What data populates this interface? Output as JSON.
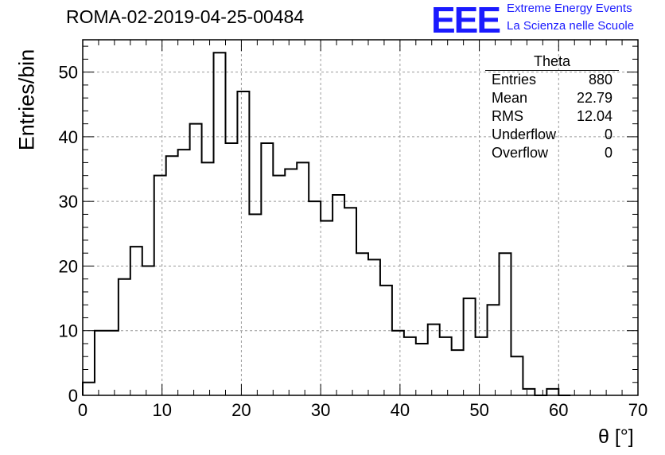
{
  "header": {
    "title": "ROMA-02-2019-04-25-00484",
    "logo_text": "EEE",
    "logo_line1": "Extreme Energy Events",
    "logo_line2": "La Scienza nelle Scuole"
  },
  "stats_box": {
    "title": "Theta",
    "rows": [
      {
        "label": "Entries",
        "value": "880"
      },
      {
        "label": "Mean",
        "value": "22.79"
      },
      {
        "label": "RMS",
        "value": "12.04"
      },
      {
        "label": "Underflow",
        "value": "0"
      },
      {
        "label": "Overflow",
        "value": "0"
      }
    ]
  },
  "chart_data": {
    "type": "bar",
    "xlabel": "θ [°]",
    "ylabel": "Entries/bin",
    "xlim": [
      0,
      70
    ],
    "ylim": [
      0,
      55
    ],
    "grid": true,
    "bin_width": 1.5,
    "bin_edges_start": 0,
    "values": [
      2,
      10,
      10,
      18,
      23,
      20,
      34,
      37,
      38,
      42,
      36,
      53,
      39,
      47,
      28,
      39,
      34,
      35,
      36,
      30,
      27,
      31,
      29,
      22,
      21,
      17,
      10,
      9,
      8,
      11,
      9,
      7,
      15,
      9,
      14,
      22,
      6,
      1,
      0,
      1,
      0
    ],
    "x_ticks": [
      "0",
      "10",
      "20",
      "30",
      "40",
      "50",
      "60",
      "70"
    ],
    "y_ticks": [
      "0",
      "10",
      "20",
      "30",
      "40",
      "50"
    ],
    "line_color": "#000000"
  }
}
